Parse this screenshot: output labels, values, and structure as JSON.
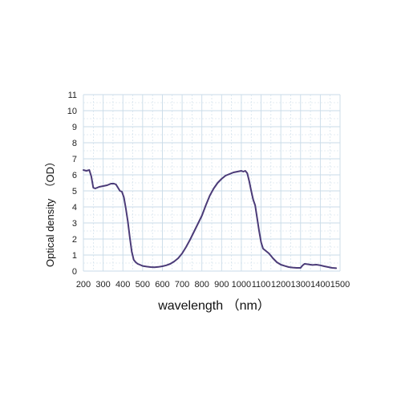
{
  "chart_data": {
    "type": "line",
    "title": "",
    "xlabel": "wavelength （nm）",
    "ylabel": "Optical density  （OD）",
    "xlim": [
      200,
      1500
    ],
    "ylim": [
      0,
      11
    ],
    "x_ticks": [
      200,
      300,
      400,
      500,
      600,
      700,
      800,
      900,
      1000,
      1100,
      1200,
      1300,
      1400,
      1500
    ],
    "y_ticks": [
      0,
      1,
      2,
      3,
      4,
      5,
      6,
      7,
      8,
      9,
      10,
      11
    ],
    "grid": true,
    "colors": {
      "line": "#4b3b78",
      "grid": "#c9dbe8"
    },
    "series": [
      {
        "name": "",
        "x": [
          200,
          215,
          230,
          240,
          250,
          260,
          270,
          280,
          300,
          320,
          340,
          355,
          365,
          375,
          385,
          395,
          405,
          415,
          425,
          435,
          445,
          455,
          465,
          475,
          485,
          500,
          520,
          540,
          560,
          580,
          600,
          620,
          640,
          660,
          680,
          700,
          720,
          740,
          760,
          780,
          800,
          820,
          840,
          860,
          880,
          900,
          920,
          940,
          960,
          980,
          1000,
          1010,
          1020,
          1030,
          1040,
          1050,
          1060,
          1070,
          1080,
          1090,
          1100,
          1110,
          1120,
          1140,
          1160,
          1180,
          1200,
          1220,
          1240,
          1260,
          1280,
          1300,
          1310,
          1320,
          1340,
          1360,
          1380,
          1400,
          1420,
          1440,
          1460,
          1480
        ],
        "y": [
          6.3,
          6.25,
          6.3,
          5.9,
          5.2,
          5.15,
          5.2,
          5.25,
          5.3,
          5.35,
          5.45,
          5.45,
          5.4,
          5.2,
          5.0,
          4.95,
          4.6,
          3.9,
          3.1,
          2.1,
          1.2,
          0.7,
          0.55,
          0.45,
          0.4,
          0.32,
          0.28,
          0.25,
          0.24,
          0.26,
          0.3,
          0.36,
          0.45,
          0.6,
          0.8,
          1.1,
          1.5,
          1.95,
          2.45,
          2.95,
          3.45,
          4.1,
          4.7,
          5.15,
          5.5,
          5.75,
          5.95,
          6.05,
          6.15,
          6.2,
          6.25,
          6.2,
          6.25,
          6.1,
          5.6,
          5.0,
          4.45,
          4.1,
          3.3,
          2.5,
          1.8,
          1.4,
          1.3,
          1.1,
          0.8,
          0.55,
          0.4,
          0.32,
          0.25,
          0.22,
          0.2,
          0.2,
          0.35,
          0.45,
          0.42,
          0.38,
          0.4,
          0.36,
          0.3,
          0.25,
          0.2,
          0.18
        ]
      }
    ]
  }
}
